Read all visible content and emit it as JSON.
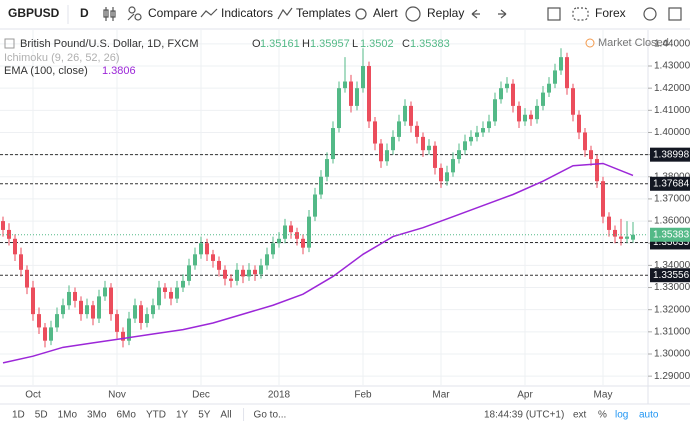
{
  "toolbar": {
    "symbol": "GBPUSD",
    "interval": "D",
    "items": [
      "Compare",
      "Indicators",
      "Templates",
      "Alert",
      "Replay"
    ],
    "market": "Forex"
  },
  "bottom_bar": {
    "ranges": [
      "1D",
      "5D",
      "1Mo",
      "3Mo",
      "6Mo",
      "YTD",
      "1Y",
      "5Y",
      "All"
    ],
    "goto": "Go to...",
    "time": "18:44:39 (UTC+1)",
    "options": [
      "ext",
      "%",
      "log",
      "auto"
    ]
  },
  "chart_data": {
    "type": "candlestick",
    "status": "Market Closed",
    "ohlc_labels": [
      "O",
      "H",
      "L",
      "C"
    ],
    "indicator_off": "Ichimoku (9, 26, 52, 26)",
    "xlim": [
      -0.5,
      107.5
    ],
    "xticks": [
      {
        "value": 5,
        "label": "Oct"
      },
      {
        "value": 19,
        "label": "Nov"
      },
      {
        "value": 33,
        "label": "Dec"
      },
      {
        "value": 46,
        "label": "2018"
      },
      {
        "value": 60,
        "label": "Feb"
      },
      {
        "value": 73,
        "label": "Mar"
      },
      {
        "value": 87,
        "label": "Apr"
      },
      {
        "value": 100,
        "label": "May"
      }
    ],
    "ylim": [
      1.286,
      1.444
    ],
    "yticks": [
      {
        "value": 1.29,
        "label": "1.29000"
      },
      {
        "value": 1.3,
        "label": "1.30000"
      },
      {
        "value": 1.31,
        "label": "1.31000"
      },
      {
        "value": 1.32,
        "label": "1.32000"
      },
      {
        "value": 1.33,
        "label": "1.33000"
      },
      {
        "value": 1.34,
        "label": "1.34000"
      },
      {
        "value": 1.35,
        "label": "1.35000"
      },
      {
        "value": 1.36,
        "label": "1.36000"
      },
      {
        "value": 1.37,
        "label": "1.37000"
      },
      {
        "value": 1.38,
        "label": "1.38000"
      },
      {
        "value": 1.39,
        "label": "1.39000"
      },
      {
        "value": 1.4,
        "label": "1.40000"
      },
      {
        "value": 1.41,
        "label": "1.41000"
      },
      {
        "value": 1.42,
        "label": "1.42000"
      },
      {
        "value": 1.43,
        "label": "1.43000"
      },
      {
        "value": 1.44,
        "label": "1.44000"
      }
    ],
    "grid": true,
    "hlines": [
      1.38998,
      1.37684,
      1.35035,
      1.33556
    ],
    "series": [
      {
        "name": "British Pound/U.S. Dollar, 1D, FXCM",
        "up_color": "#53b987",
        "down_color": "#eb4d5c",
        "open": [
          1.36,
          1.356,
          1.352,
          1.345,
          1.338,
          1.33,
          1.318,
          1.312,
          1.306,
          1.312,
          1.318,
          1.322,
          1.328,
          1.324,
          1.318,
          1.322,
          1.316,
          1.326,
          1.33,
          1.318,
          1.31,
          1.306,
          1.316,
          1.322,
          1.314,
          1.318,
          1.322,
          1.33,
          1.328,
          1.325,
          1.33,
          1.333,
          1.34,
          1.345,
          1.35,
          1.345,
          1.342,
          1.338,
          1.334,
          1.333,
          1.338,
          1.335,
          1.338,
          1.336,
          1.34,
          1.345,
          1.35,
          1.352,
          1.358,
          1.355,
          1.352,
          1.348,
          1.362,
          1.372,
          1.38,
          1.388,
          1.402,
          1.42,
          1.423,
          1.412,
          1.42,
          1.43,
          1.405,
          1.395,
          1.387,
          1.392,
          1.398,
          1.405,
          1.412,
          1.403,
          1.398,
          1.392,
          1.394,
          1.384,
          1.378,
          1.382,
          1.388,
          1.392,
          1.396,
          1.398,
          1.4,
          1.402,
          1.405,
          1.415,
          1.42,
          1.422,
          1.412,
          1.405,
          1.408,
          1.406,
          1.412,
          1.418,
          1.422,
          1.428,
          1.434,
          1.42,
          1.408,
          1.4,
          1.392,
          1.388,
          1.378,
          1.362,
          1.356,
          1.353,
          1.352,
          1.35161
        ],
        "high": [
          1.362,
          1.359,
          1.354,
          1.348,
          1.34,
          1.333,
          1.321,
          1.314,
          1.315,
          1.321,
          1.325,
          1.331,
          1.33,
          1.326,
          1.325,
          1.324,
          1.329,
          1.333,
          1.332,
          1.32,
          1.312,
          1.319,
          1.325,
          1.324,
          1.321,
          1.325,
          1.333,
          1.332,
          1.33,
          1.333,
          1.336,
          1.343,
          1.348,
          1.353,
          1.352,
          1.347,
          1.344,
          1.34,
          1.336,
          1.341,
          1.34,
          1.341,
          1.34,
          1.343,
          1.348,
          1.353,
          1.355,
          1.361,
          1.36,
          1.357,
          1.354,
          1.365,
          1.375,
          1.383,
          1.391,
          1.405,
          1.423,
          1.434,
          1.426,
          1.423,
          1.438,
          1.432,
          1.407,
          1.397,
          1.395,
          1.401,
          1.408,
          1.415,
          1.414,
          1.405,
          1.4,
          1.397,
          1.396,
          1.386,
          1.385,
          1.391,
          1.395,
          1.399,
          1.401,
          1.403,
          1.405,
          1.408,
          1.418,
          1.423,
          1.425,
          1.424,
          1.414,
          1.411,
          1.41,
          1.415,
          1.421,
          1.425,
          1.431,
          1.438,
          1.436,
          1.422,
          1.41,
          1.402,
          1.394,
          1.39,
          1.38,
          1.364,
          1.358,
          1.361,
          1.36,
          1.35957
        ],
        "low": [
          1.353,
          1.349,
          1.342,
          1.335,
          1.327,
          1.315,
          1.309,
          1.303,
          1.304,
          1.31,
          1.316,
          1.32,
          1.321,
          1.315,
          1.316,
          1.313,
          1.314,
          1.324,
          1.315,
          1.307,
          1.303,
          1.304,
          1.314,
          1.311,
          1.312,
          1.316,
          1.32,
          1.325,
          1.322,
          1.323,
          1.328,
          1.331,
          1.338,
          1.343,
          1.342,
          1.339,
          1.335,
          1.331,
          1.33,
          1.331,
          1.332,
          1.333,
          1.333,
          1.334,
          1.338,
          1.343,
          1.348,
          1.35,
          1.352,
          1.349,
          1.345,
          1.346,
          1.36,
          1.37,
          1.378,
          1.386,
          1.4,
          1.418,
          1.409,
          1.41,
          1.418,
          1.402,
          1.392,
          1.384,
          1.385,
          1.39,
          1.396,
          1.403,
          1.4,
          1.395,
          1.389,
          1.39,
          1.381,
          1.375,
          1.376,
          1.38,
          1.386,
          1.39,
          1.394,
          1.396,
          1.398,
          1.4,
          1.403,
          1.413,
          1.418,
          1.409,
          1.402,
          1.403,
          1.403,
          1.404,
          1.41,
          1.416,
          1.42,
          1.426,
          1.417,
          1.405,
          1.397,
          1.389,
          1.385,
          1.375,
          1.359,
          1.353,
          1.35,
          1.349,
          1.35,
          1.3502
        ],
        "close": [
          1.356,
          1.352,
          1.345,
          1.338,
          1.33,
          1.318,
          1.312,
          1.306,
          1.312,
          1.318,
          1.322,
          1.328,
          1.324,
          1.318,
          1.322,
          1.316,
          1.326,
          1.33,
          1.318,
          1.31,
          1.306,
          1.316,
          1.322,
          1.314,
          1.318,
          1.322,
          1.33,
          1.328,
          1.325,
          1.33,
          1.333,
          1.34,
          1.345,
          1.35,
          1.345,
          1.342,
          1.338,
          1.334,
          1.333,
          1.338,
          1.335,
          1.338,
          1.336,
          1.34,
          1.345,
          1.35,
          1.352,
          1.358,
          1.355,
          1.352,
          1.348,
          1.362,
          1.372,
          1.38,
          1.388,
          1.402,
          1.42,
          1.423,
          1.412,
          1.42,
          1.43,
          1.405,
          1.395,
          1.387,
          1.392,
          1.398,
          1.405,
          1.412,
          1.403,
          1.398,
          1.392,
          1.394,
          1.384,
          1.378,
          1.382,
          1.388,
          1.392,
          1.396,
          1.398,
          1.4,
          1.402,
          1.405,
          1.415,
          1.42,
          1.422,
          1.412,
          1.405,
          1.408,
          1.406,
          1.412,
          1.418,
          1.422,
          1.428,
          1.434,
          1.42,
          1.408,
          1.4,
          1.392,
          1.388,
          1.378,
          1.362,
          1.356,
          1.353,
          1.352,
          1.353,
          1.35383
        ]
      },
      {
        "type": "line",
        "name": "EMA (100, close)",
        "color": "#9c27d8",
        "x": [
          0,
          5,
          10,
          15,
          20,
          25,
          30,
          35,
          40,
          45,
          50,
          55,
          60,
          65,
          70,
          75,
          80,
          85,
          90,
          95,
          100,
          105
        ],
        "values": [
          1.296,
          1.299,
          1.303,
          1.305,
          1.307,
          1.309,
          1.311,
          1.314,
          1.318,
          1.322,
          1.327,
          1.335,
          1.345,
          1.353,
          1.357,
          1.362,
          1.367,
          1.372,
          1.378,
          1.385,
          1.386,
          1.3806
        ]
      }
    ]
  }
}
